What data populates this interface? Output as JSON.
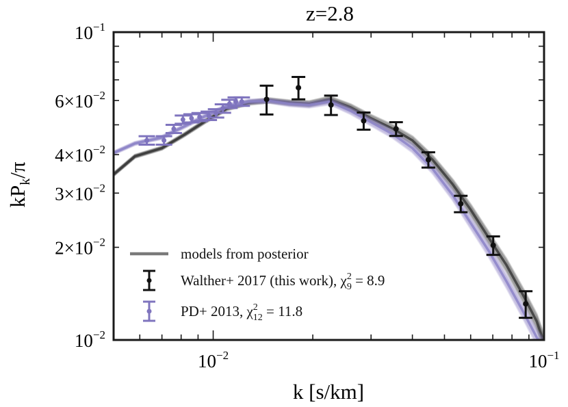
{
  "chart_data": {
    "type": "line",
    "title": "z=2.8",
    "xlabel": "k [s/km]",
    "ylabel": "kP_k/π",
    "xscale": "log",
    "yscale": "log",
    "xlim": [
      0.005,
      0.1
    ],
    "ylim": [
      0.01,
      0.1
    ],
    "x_ticks": [
      {
        "value": 0.01,
        "base": "10",
        "exp": "−2"
      },
      {
        "value": 0.1,
        "base": "10",
        "exp": "−1"
      }
    ],
    "y_ticks": [
      {
        "value": 0.1,
        "mant": "",
        "base": "10",
        "exp": "−1"
      },
      {
        "value": 0.06,
        "mant": "6×",
        "base": "10",
        "exp": "−2"
      },
      {
        "value": 0.04,
        "mant": "4×",
        "base": "10",
        "exp": "−2"
      },
      {
        "value": 0.03,
        "mant": "3×",
        "base": "10",
        "exp": "−2"
      },
      {
        "value": 0.02,
        "mant": "2×",
        "base": "10",
        "exp": "−2"
      },
      {
        "value": 0.01,
        "mant": "",
        "base": "10",
        "exp": "−2"
      }
    ],
    "legend_position": "bottom-left",
    "legend": [
      {
        "key": "models",
        "label": "models from posterior"
      },
      {
        "key": "walther",
        "label_main": "Walther+ 2017 (this work), χ",
        "label_sub": "9",
        "label_sup": "2",
        "label_tail": " = 8.9"
      },
      {
        "key": "pd",
        "label_main": "PD+ 2013, χ",
        "label_sub": "12",
        "label_sup": "2",
        "label_tail": " = 11.8"
      }
    ],
    "series": [
      {
        "name": "models from posterior (Walther)",
        "kind": "band",
        "color": "#3a3a3a",
        "x": [
          0.005,
          0.0058,
          0.007,
          0.0082,
          0.0095,
          0.011,
          0.0128,
          0.0148,
          0.017,
          0.0195,
          0.0225,
          0.026,
          0.03,
          0.035,
          0.04,
          0.046,
          0.053,
          0.06,
          0.068,
          0.077,
          0.087,
          0.095,
          0.1
        ],
        "values": [
          0.0345,
          0.0395,
          0.042,
          0.0465,
          0.0515,
          0.0565,
          0.059,
          0.06,
          0.059,
          0.0585,
          0.0605,
          0.057,
          0.0525,
          0.0485,
          0.0445,
          0.0385,
          0.032,
          0.0265,
          0.0215,
          0.0175,
          0.0138,
          0.0115,
          0.0098
        ]
      },
      {
        "name": "models from posterior (PD)",
        "kind": "band",
        "color": "#8c84c8",
        "x": [
          0.005,
          0.0058,
          0.007,
          0.0082,
          0.0095,
          0.011,
          0.0128,
          0.0148,
          0.017,
          0.0195,
          0.0225,
          0.026,
          0.03,
          0.035,
          0.04,
          0.046,
          0.053,
          0.06,
          0.068,
          0.077,
          0.087,
          0.095,
          0.1
        ],
        "values": [
          0.0405,
          0.0435,
          0.0455,
          0.0495,
          0.0535,
          0.0575,
          0.0595,
          0.0598,
          0.0585,
          0.058,
          0.0595,
          0.0555,
          0.051,
          0.0465,
          0.042,
          0.036,
          0.0295,
          0.024,
          0.0195,
          0.0155,
          0.0122,
          0.0102,
          0.0095
        ]
      },
      {
        "name": "Walther+ 2017 (this work)",
        "kind": "points",
        "color": "#111111",
        "x": [
          0.0145,
          0.0181,
          0.0227,
          0.0285,
          0.0357,
          0.0447,
          0.056,
          0.0702,
          0.088
        ],
        "values": [
          0.0605,
          0.066,
          0.058,
          0.0515,
          0.0485,
          0.0385,
          0.0277,
          0.0203,
          0.0131
        ],
        "errors": [
          0.0065,
          0.0055,
          0.0042,
          0.0033,
          0.0025,
          0.0022,
          0.0017,
          0.0014,
          0.0013
        ]
      },
      {
        "name": "PD+ 2013",
        "kind": "points",
        "color": "#7f74be",
        "x": [
          0.0063,
          0.0071,
          0.0076,
          0.0081,
          0.0086,
          0.0091,
          0.0097,
          0.0102,
          0.0107,
          0.0112,
          0.0117,
          0.0122
        ],
        "values": [
          0.0445,
          0.0445,
          0.0485,
          0.052,
          0.0525,
          0.053,
          0.0535,
          0.0545,
          0.0565,
          0.0585,
          0.0595,
          0.0595
        ],
        "errors": [
          0.0014,
          0.0014,
          0.0015,
          0.0016,
          0.0016,
          0.0016,
          0.0017,
          0.0017,
          0.0018,
          0.0018,
          0.0019,
          0.0019
        ]
      }
    ]
  }
}
